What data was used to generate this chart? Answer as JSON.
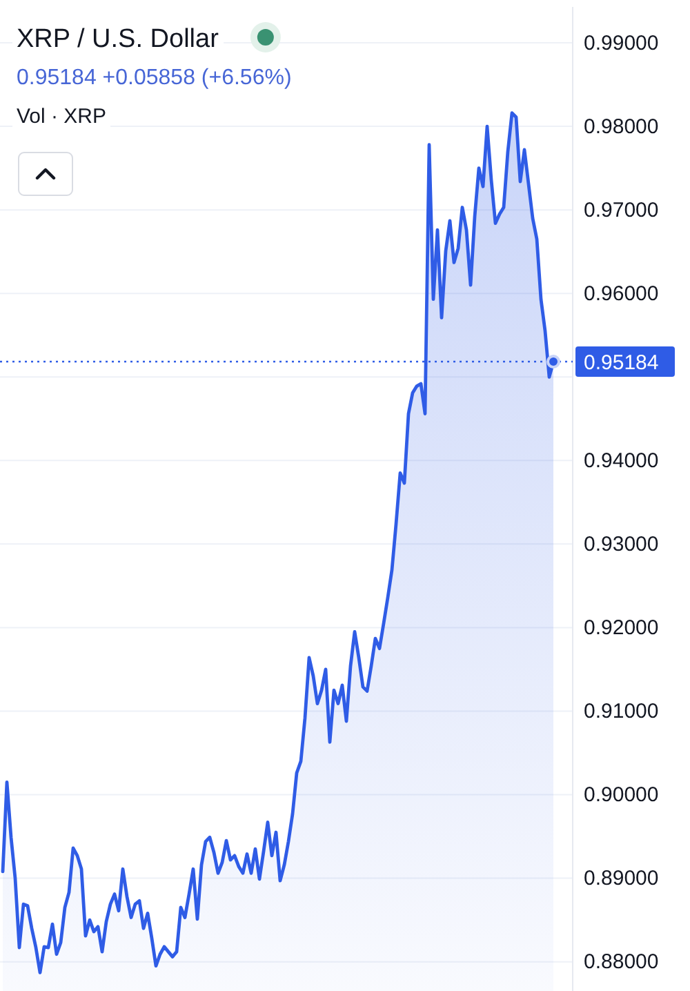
{
  "chart_data": {
    "type": "area",
    "title": "XRP / U.S. Dollar",
    "subtitle": "0.95184 +0.05858 (+6.56%)",
    "annotations": [
      "Vol · XRP"
    ],
    "categories": [
      null,
      null,
      null,
      null,
      null,
      null,
      null,
      null,
      null,
      null,
      null,
      null,
      null,
      null,
      null,
      null,
      null,
      null,
      null,
      null,
      null,
      null,
      null,
      null,
      null,
      null,
      null,
      null,
      null,
      null,
      null,
      null,
      null,
      null,
      null,
      null,
      null,
      null,
      null,
      null,
      null,
      null,
      null,
      null,
      null,
      null,
      null,
      null,
      null,
      null,
      null,
      null,
      null,
      null,
      null,
      null,
      null,
      null,
      null,
      null,
      null,
      null,
      null,
      null,
      null,
      null,
      null,
      null,
      null,
      null,
      null,
      null,
      null,
      null,
      null,
      null,
      null,
      null,
      null,
      null,
      null,
      null,
      null,
      null,
      null,
      null,
      null,
      null,
      null,
      null,
      null,
      null,
      null,
      null,
      null,
      null,
      null,
      null,
      null,
      null,
      null,
      null,
      null,
      null,
      null,
      null,
      null,
      null,
      null,
      null,
      null,
      null,
      null,
      null,
      null,
      null,
      null,
      null,
      null,
      null,
      null,
      null,
      null,
      null,
      null,
      null,
      null,
      null,
      null,
      null,
      null,
      null,
      null,
      null
    ],
    "values": [
      0.8908,
      0.9015,
      0.8949,
      0.89,
      0.8817,
      0.8869,
      0.8867,
      0.884,
      0.8817,
      0.8787,
      0.8818,
      0.8817,
      0.8845,
      0.8809,
      0.8823,
      0.8865,
      0.8883,
      0.8936,
      0.8927,
      0.8911,
      0.8831,
      0.885,
      0.8836,
      0.8842,
      0.8812,
      0.8848,
      0.8869,
      0.8881,
      0.8861,
      0.8911,
      0.8878,
      0.8853,
      0.8869,
      0.8873,
      0.884,
      0.8858,
      0.8828,
      0.8795,
      0.8809,
      0.8818,
      0.8812,
      0.8806,
      0.8812,
      0.8865,
      0.8853,
      0.8881,
      0.8911,
      0.8851,
      0.8916,
      0.8944,
      0.8949,
      0.8931,
      0.8906,
      0.8919,
      0.8945,
      0.8922,
      0.8927,
      0.8914,
      0.8906,
      0.8929,
      0.8906,
      0.8935,
      0.8899,
      0.8932,
      0.8967,
      0.8927,
      0.8955,
      0.8897,
      0.8916,
      0.8944,
      0.8977,
      0.9026,
      0.904,
      0.9092,
      0.9164,
      0.9142,
      0.9109,
      0.9125,
      0.915,
      0.9063,
      0.9125,
      0.9109,
      0.9131,
      0.9088,
      0.9154,
      0.9195,
      0.9164,
      0.9129,
      0.9124,
      0.9154,
      0.9187,
      0.9175,
      0.9205,
      0.9236,
      0.9269,
      0.9324,
      0.9385,
      0.9373,
      0.9456,
      0.9481,
      0.9489,
      0.9492,
      0.9456,
      0.9778,
      0.9593,
      0.9676,
      0.9571,
      0.9651,
      0.9687,
      0.9637,
      0.9654,
      0.9703,
      0.9676,
      0.961,
      0.9692,
      0.975,
      0.9728,
      0.98,
      0.9736,
      0.9684,
      0.9695,
      0.9703,
      0.977,
      0.9816,
      0.9811,
      0.9734,
      0.9772,
      0.9731,
      0.969,
      0.9665,
      0.9593,
      0.9555,
      0.95,
      0.9518
    ],
    "color": "#2f5ce6",
    "ylim": [
      0.8765,
      0.9943
    ],
    "yticks": [
      {
        "value": 0.88,
        "label": "0.88000"
      },
      {
        "value": 0.89,
        "label": "0.89000"
      },
      {
        "value": 0.9,
        "label": "0.90000"
      },
      {
        "value": 0.91,
        "label": "0.91000"
      },
      {
        "value": 0.92,
        "label": "0.92000"
      },
      {
        "value": 0.93,
        "label": "0.93000"
      },
      {
        "value": 0.94,
        "label": "0.94000"
      },
      {
        "value": 0.95,
        "label": null
      },
      {
        "value": 0.96,
        "label": "0.96000"
      },
      {
        "value": 0.97,
        "label": "0.97000"
      },
      {
        "value": 0.98,
        "label": "0.98000"
      },
      {
        "value": 0.99,
        "label": "0.99000"
      }
    ],
    "grid": "y",
    "tick_labels": "y",
    "ref_lines": [
      {
        "axis": "y",
        "value": 0.95184,
        "label": "0.95184",
        "color": "#2f5ce6",
        "line_style": "dotted"
      }
    ]
  }
}
